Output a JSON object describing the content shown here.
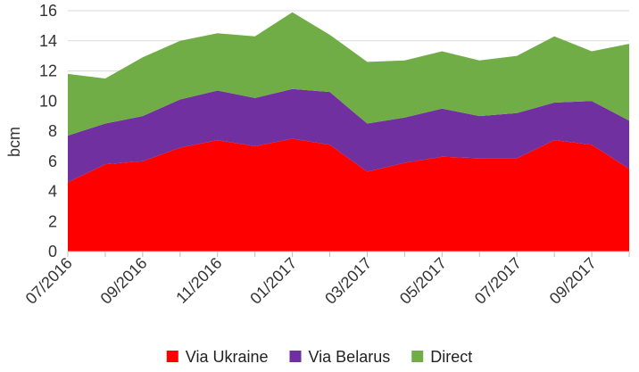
{
  "chart_data": {
    "type": "area",
    "stacked": true,
    "title": "",
    "xlabel": "",
    "ylabel": "bcm",
    "ylim": [
      0,
      16
    ],
    "yticks": [
      0,
      2,
      4,
      6,
      8,
      10,
      12,
      14,
      16
    ],
    "grid": true,
    "legend_position": "bottom",
    "categories": [
      "07/2016",
      "08/2016",
      "09/2016",
      "10/2016",
      "11/2016",
      "12/2016",
      "01/2017",
      "02/2017",
      "03/2017",
      "04/2017",
      "05/2017",
      "06/2017",
      "07/2017",
      "08/2017",
      "09/2017",
      "10/2017"
    ],
    "xtick_labels": [
      "07/2016",
      "09/2016",
      "11/2016",
      "01/2017",
      "03/2017",
      "05/2017",
      "07/2017",
      "09/2017"
    ],
    "series": [
      {
        "name": "Via Ukraine",
        "color": "#ff0000",
        "values": [
          4.6,
          5.8,
          6.0,
          6.9,
          7.4,
          7.0,
          7.5,
          7.1,
          5.3,
          5.9,
          6.3,
          6.2,
          6.2,
          7.4,
          7.1,
          5.5
        ]
      },
      {
        "name": "Via Belarus",
        "color": "#7030a0",
        "values": [
          3.1,
          2.7,
          3.0,
          3.2,
          3.3,
          3.2,
          3.3,
          3.5,
          3.2,
          3.0,
          3.2,
          2.8,
          3.0,
          2.5,
          2.9,
          3.2
        ]
      },
      {
        "name": "Direct",
        "color": "#70ad47",
        "values": [
          4.1,
          3.0,
          3.9,
          3.9,
          3.8,
          4.1,
          5.1,
          3.8,
          4.1,
          3.8,
          3.8,
          3.7,
          3.8,
          4.4,
          3.3,
          5.1
        ]
      }
    ]
  }
}
